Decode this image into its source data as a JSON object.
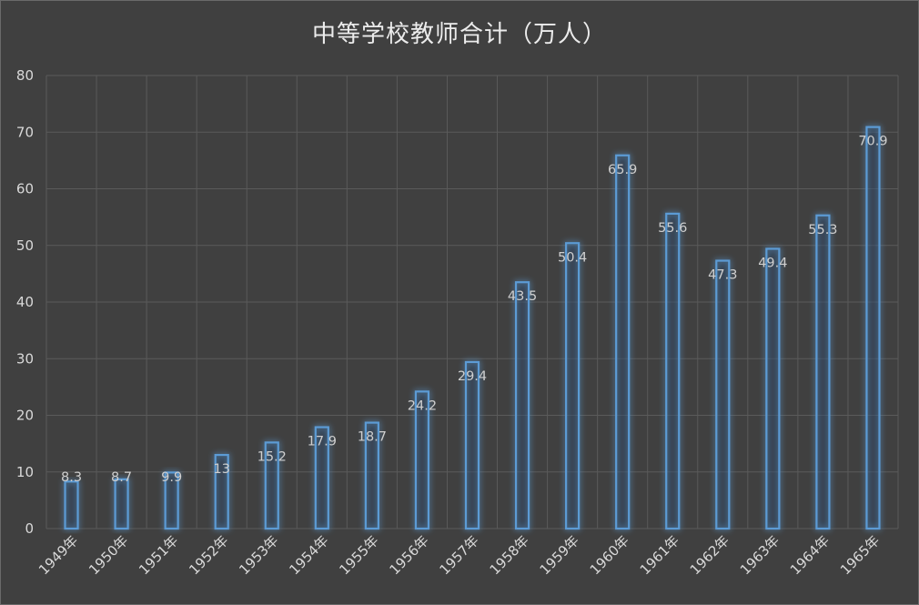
{
  "chart_data": {
    "type": "bar",
    "title": "中等学校教师合计（万人）",
    "categories": [
      "1949年",
      "1950年",
      "1951年",
      "1952年",
      "1953年",
      "1954年",
      "1955年",
      "1956年",
      "1957年",
      "1958年",
      "1959年",
      "1960年",
      "1961年",
      "1962年",
      "1963年",
      "1964年",
      "1965年"
    ],
    "values": [
      8.3,
      8.7,
      9.9,
      13,
      15.2,
      17.9,
      18.7,
      24.2,
      29.4,
      43.5,
      50.4,
      65.9,
      55.6,
      47.3,
      49.4,
      55.3,
      70.9
    ],
    "data_labels": [
      "8.3",
      "8.7",
      "9.9",
      "13",
      "15.2",
      "17.9",
      "18.7",
      "24.2",
      "29.4",
      "43.5",
      "50.4",
      "65.9",
      "55.6",
      "47.3",
      "49.4",
      "55.3",
      "70.9"
    ],
    "ylim": [
      0,
      80
    ],
    "yticks": [
      "0",
      "10",
      "20",
      "30",
      "40",
      "50",
      "60",
      "70",
      "80"
    ],
    "grid": true,
    "legend": "none",
    "xlabel": "",
    "ylabel": "",
    "colors": {
      "background": "#404040",
      "grid": "#5a5a5a",
      "bar_outline": "#5b9bd5",
      "bar_glow": "#4a90d9"
    }
  }
}
